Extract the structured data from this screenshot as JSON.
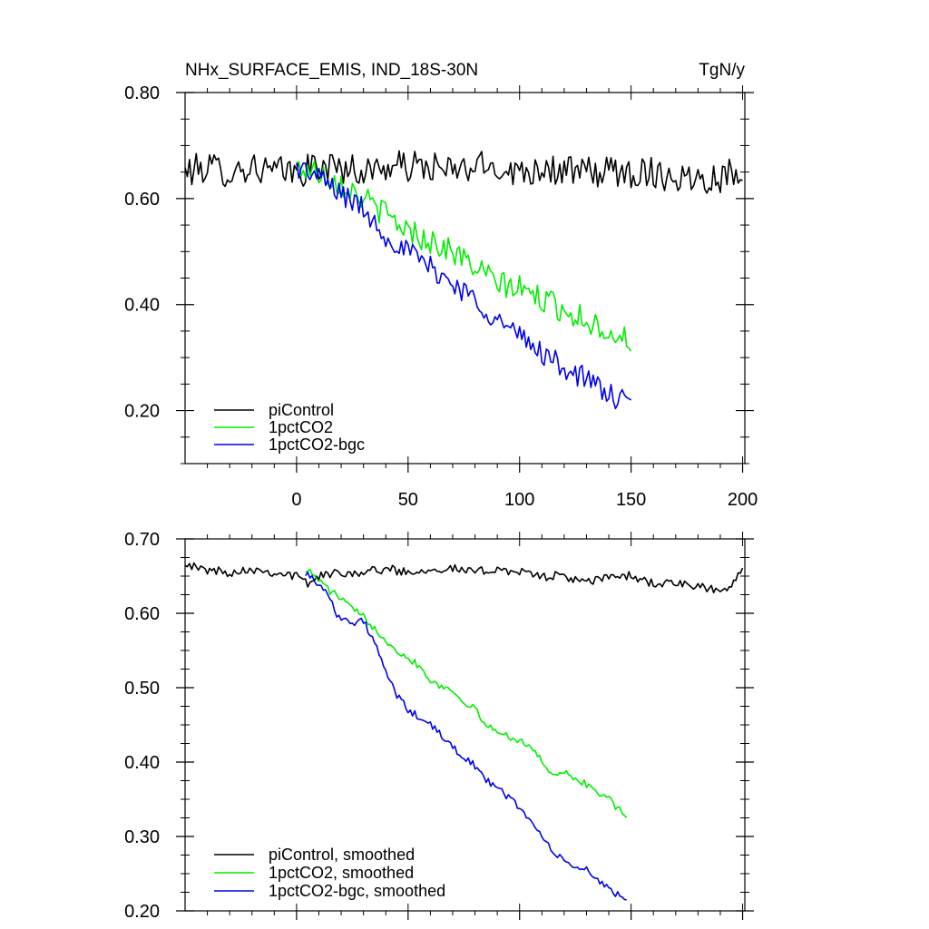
{
  "chart_data": [
    {
      "type": "line",
      "title": "NHx_SURFACE_EMIS, IND_18S-30N",
      "units": "TgN/y",
      "xlabel": "",
      "ylabel": "",
      "xlim": [
        -50,
        201
      ],
      "ylim": [
        0.1,
        0.8
      ],
      "xticks": [
        0,
        50,
        100,
        150,
        200
      ],
      "xtick_labels": [
        "0",
        "50",
        "100",
        "150",
        "200"
      ],
      "yticks": [
        0.2,
        0.4,
        0.6,
        0.8
      ],
      "ytick_labels": [
        "0.20",
        "0.40",
        "0.60",
        "0.80"
      ],
      "legend_position": "bottom-left",
      "series": [
        {
          "name": "piControl",
          "color": "#000000",
          "x_start": -50,
          "x_end": 200,
          "points": [
            [
              -50,
              0.65
            ],
            [
              -40,
              0.66
            ],
            [
              -30,
              0.65
            ],
            [
              -20,
              0.66
            ],
            [
              -10,
              0.65
            ],
            [
              0,
              0.65
            ],
            [
              10,
              0.66
            ],
            [
              20,
              0.66
            ],
            [
              30,
              0.65
            ],
            [
              40,
              0.66
            ],
            [
              50,
              0.66
            ],
            [
              60,
              0.66
            ],
            [
              70,
              0.65
            ],
            [
              80,
              0.66
            ],
            [
              90,
              0.66
            ],
            [
              100,
              0.65
            ],
            [
              110,
              0.66
            ],
            [
              120,
              0.65
            ],
            [
              130,
              0.65
            ],
            [
              140,
              0.65
            ],
            [
              150,
              0.65
            ],
            [
              160,
              0.65
            ],
            [
              170,
              0.64
            ],
            [
              180,
              0.64
            ],
            [
              190,
              0.64
            ],
            [
              200,
              0.66
            ]
          ]
        },
        {
          "name": "1pctCO2",
          "color": "#00ee00",
          "x_start": 0,
          "x_end": 150,
          "points": [
            [
              0,
              0.66
            ],
            [
              10,
              0.65
            ],
            [
              20,
              0.63
            ],
            [
              30,
              0.6
            ],
            [
              40,
              0.57
            ],
            [
              50,
              0.54
            ],
            [
              60,
              0.52
            ],
            [
              70,
              0.5
            ],
            [
              80,
              0.47
            ],
            [
              90,
              0.44
            ],
            [
              100,
              0.43
            ],
            [
              110,
              0.41
            ],
            [
              120,
              0.39
            ],
            [
              130,
              0.37
            ],
            [
              140,
              0.35
            ],
            [
              150,
              0.33
            ]
          ]
        },
        {
          "name": "1pctCO2-bgc",
          "color": "#0000ee",
          "x_start": 0,
          "x_end": 150,
          "points": [
            [
              0,
              0.66
            ],
            [
              10,
              0.64
            ],
            [
              20,
              0.61
            ],
            [
              30,
              0.58
            ],
            [
              40,
              0.53
            ],
            [
              50,
              0.5
            ],
            [
              60,
              0.47
            ],
            [
              70,
              0.44
            ],
            [
              80,
              0.41
            ],
            [
              90,
              0.37
            ],
            [
              100,
              0.34
            ],
            [
              110,
              0.31
            ],
            [
              120,
              0.28
            ],
            [
              130,
              0.26
            ],
            [
              140,
              0.23
            ],
            [
              150,
              0.21
            ]
          ]
        }
      ],
      "noise_amplitude": [
        0.03,
        0.025,
        0.022
      ]
    },
    {
      "type": "line",
      "title": "",
      "xlim": [
        -50,
        201
      ],
      "ylim": [
        0.2,
        0.7
      ],
      "xticks": [
        0,
        50,
        100,
        150,
        200
      ],
      "xtick_labels": [],
      "yticks": [
        0.2,
        0.3,
        0.4,
        0.5,
        0.6,
        0.7
      ],
      "ytick_labels": [
        "0.20",
        "0.30",
        "0.40",
        "0.50",
        "0.60",
        "0.70"
      ],
      "legend_position": "bottom-left",
      "series": [
        {
          "name": "piControl, smoothed",
          "color": "#000000",
          "x_start": -50,
          "x_end": 200,
          "points": [
            [
              -50,
              0.67
            ],
            [
              -45,
              0.66
            ],
            [
              -30,
              0.655
            ],
            [
              -20,
              0.66
            ],
            [
              -10,
              0.655
            ],
            [
              0,
              0.65
            ],
            [
              5,
              0.64
            ],
            [
              10,
              0.65
            ],
            [
              20,
              0.655
            ],
            [
              30,
              0.655
            ],
            [
              40,
              0.66
            ],
            [
              50,
              0.655
            ],
            [
              60,
              0.66
            ],
            [
              70,
              0.66
            ],
            [
              80,
              0.655
            ],
            [
              90,
              0.66
            ],
            [
              100,
              0.655
            ],
            [
              110,
              0.65
            ],
            [
              120,
              0.65
            ],
            [
              130,
              0.64
            ],
            [
              140,
              0.65
            ],
            [
              150,
              0.65
            ],
            [
              160,
              0.64
            ],
            [
              170,
              0.64
            ],
            [
              180,
              0.635
            ],
            [
              190,
              0.63
            ],
            [
              195,
              0.635
            ],
            [
              200,
              0.665
            ]
          ]
        },
        {
          "name": "1pctCO2, smoothed",
          "color": "#00ee00",
          "x_start": 4,
          "x_end": 148,
          "points": [
            [
              4,
              0.66
            ],
            [
              10,
              0.645
            ],
            [
              15,
              0.63
            ],
            [
              20,
              0.62
            ],
            [
              25,
              0.605
            ],
            [
              30,
              0.595
            ],
            [
              35,
              0.58
            ],
            [
              40,
              0.565
            ],
            [
              45,
              0.55
            ],
            [
              50,
              0.54
            ],
            [
              55,
              0.53
            ],
            [
              60,
              0.51
            ],
            [
              70,
              0.495
            ],
            [
              80,
              0.47
            ],
            [
              85,
              0.45
            ],
            [
              90,
              0.44
            ],
            [
              100,
              0.43
            ],
            [
              105,
              0.42
            ],
            [
              110,
              0.4
            ],
            [
              115,
              0.385
            ],
            [
              120,
              0.385
            ],
            [
              130,
              0.37
            ],
            [
              140,
              0.35
            ],
            [
              148,
              0.325
            ]
          ]
        },
        {
          "name": "1pctCO2-bgc, smoothed",
          "color": "#0000ee",
          "x_start": 4,
          "x_end": 148,
          "points": [
            [
              4,
              0.655
            ],
            [
              10,
              0.64
            ],
            [
              15,
              0.62
            ],
            [
              18,
              0.6
            ],
            [
              25,
              0.585
            ],
            [
              30,
              0.59
            ],
            [
              35,
              0.56
            ],
            [
              40,
              0.52
            ],
            [
              45,
              0.49
            ],
            [
              50,
              0.47
            ],
            [
              60,
              0.45
            ],
            [
              70,
              0.42
            ],
            [
              80,
              0.395
            ],
            [
              85,
              0.375
            ],
            [
              90,
              0.365
            ],
            [
              100,
              0.34
            ],
            [
              105,
              0.32
            ],
            [
              110,
              0.3
            ],
            [
              115,
              0.28
            ],
            [
              120,
              0.265
            ],
            [
              130,
              0.255
            ],
            [
              135,
              0.24
            ],
            [
              140,
              0.23
            ],
            [
              148,
              0.215
            ]
          ]
        }
      ],
      "noise_amplitude": [
        0.006,
        0.005,
        0.005
      ]
    }
  ]
}
